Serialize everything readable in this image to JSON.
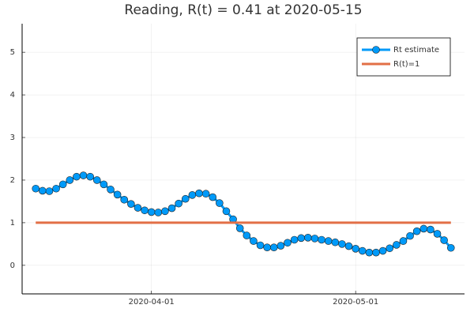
{
  "chart_data": {
    "type": "line",
    "title": "Reading, R(t) = 0.41 at 2020-05-15",
    "series": [
      {
        "name": "Rt estimate",
        "color": "#009af9",
        "marker": "circle",
        "x": [
          "2020-03-15",
          "2020-03-16",
          "2020-03-17",
          "2020-03-18",
          "2020-03-19",
          "2020-03-20",
          "2020-03-21",
          "2020-03-22",
          "2020-03-23",
          "2020-03-24",
          "2020-03-25",
          "2020-03-26",
          "2020-03-27",
          "2020-03-28",
          "2020-03-29",
          "2020-03-30",
          "2020-03-31",
          "2020-04-01",
          "2020-04-02",
          "2020-04-03",
          "2020-04-04",
          "2020-04-05",
          "2020-04-06",
          "2020-04-07",
          "2020-04-08",
          "2020-04-09",
          "2020-04-10",
          "2020-04-11",
          "2020-04-12",
          "2020-04-13",
          "2020-04-14",
          "2020-04-15",
          "2020-04-16",
          "2020-04-17",
          "2020-04-18",
          "2020-04-19",
          "2020-04-20",
          "2020-04-21",
          "2020-04-22",
          "2020-04-23",
          "2020-04-24",
          "2020-04-25",
          "2020-04-26",
          "2020-04-27",
          "2020-04-28",
          "2020-04-29",
          "2020-04-30",
          "2020-05-01",
          "2020-05-02",
          "2020-05-03",
          "2020-05-04",
          "2020-05-05",
          "2020-05-06",
          "2020-05-07",
          "2020-05-08",
          "2020-05-09",
          "2020-05-10",
          "2020-05-11",
          "2020-05-12",
          "2020-05-13",
          "2020-05-14",
          "2020-05-15"
        ],
        "values": [
          1.8,
          1.75,
          1.74,
          1.8,
          1.9,
          2.0,
          2.08,
          2.11,
          2.08,
          2.0,
          1.9,
          1.78,
          1.66,
          1.54,
          1.44,
          1.35,
          1.29,
          1.25,
          1.24,
          1.27,
          1.34,
          1.45,
          1.56,
          1.65,
          1.69,
          1.68,
          1.6,
          1.46,
          1.27,
          1.08,
          0.87,
          0.7,
          0.57,
          0.47,
          0.42,
          0.42,
          0.46,
          0.53,
          0.6,
          0.64,
          0.65,
          0.63,
          0.6,
          0.57,
          0.54,
          0.5,
          0.45,
          0.39,
          0.34,
          0.3,
          0.3,
          0.34,
          0.4,
          0.48,
          0.57,
          0.69,
          0.8,
          0.86,
          0.84,
          0.74,
          0.59,
          0.41
        ]
      },
      {
        "name": "R(t)=1",
        "color": "#e26f46",
        "x": [
          "2020-03-15",
          "2020-05-15"
        ],
        "values": [
          1,
          1
        ]
      }
    ],
    "xlim": [
      "2020-03-13",
      "2020-05-17"
    ],
    "xticks": [
      "2020-04-01",
      "2020-05-01"
    ],
    "ylim": [
      -0.67,
      5.67
    ],
    "yticks": [
      0,
      1,
      2,
      3,
      4,
      5
    ],
    "grid": true,
    "legend": "top-right"
  }
}
